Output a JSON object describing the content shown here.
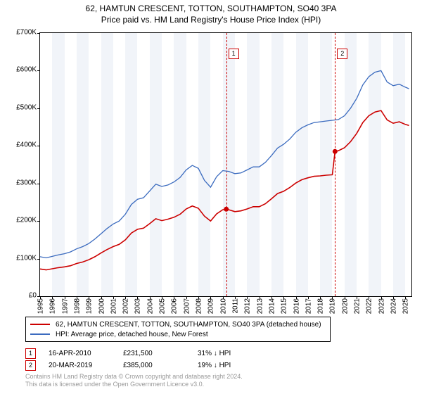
{
  "title_line1": "62, HAMTUN CRESCENT, TOTTON, SOUTHAMPTON, SO40 3PA",
  "title_line2": "Price paid vs. HM Land Registry's House Price Index (HPI)",
  "chart": {
    "type": "line",
    "plot_bg": "#ffffff",
    "alt_band_bg": "#f1f4f9",
    "x_range": [
      1995,
      2025.5
    ],
    "y_range": [
      0,
      700000
    ],
    "y_ticks": [
      0,
      100000,
      200000,
      300000,
      400000,
      500000,
      600000,
      700000
    ],
    "y_tick_labels": [
      "£0",
      "£100K",
      "£200K",
      "£300K",
      "£400K",
      "£500K",
      "£600K",
      "£700K"
    ],
    "x_ticks": [
      1995,
      1996,
      1997,
      1998,
      1999,
      2000,
      2001,
      2002,
      2003,
      2004,
      2005,
      2006,
      2007,
      2008,
      2009,
      2010,
      2011,
      2012,
      2013,
      2014,
      2015,
      2016,
      2017,
      2018,
      2019,
      2020,
      2021,
      2022,
      2023,
      2024,
      2025
    ],
    "axis_font_size": 10,
    "series": [
      {
        "name": "hpi",
        "color": "#3b6bbf",
        "width": 1.3,
        "label": "HPI: Average price, detached house, New Forest",
        "points": [
          [
            1995,
            105000
          ],
          [
            1995.5,
            102000
          ],
          [
            1996,
            106000
          ],
          [
            1996.5,
            110000
          ],
          [
            1997,
            113000
          ],
          [
            1997.5,
            118000
          ],
          [
            1998,
            126000
          ],
          [
            1998.5,
            132000
          ],
          [
            1999,
            140000
          ],
          [
            1999.5,
            152000
          ],
          [
            2000,
            166000
          ],
          [
            2000.5,
            180000
          ],
          [
            2001,
            192000
          ],
          [
            2001.5,
            200000
          ],
          [
            2002,
            218000
          ],
          [
            2002.5,
            244000
          ],
          [
            2003,
            258000
          ],
          [
            2003.5,
            262000
          ],
          [
            2004,
            280000
          ],
          [
            2004.5,
            298000
          ],
          [
            2005,
            292000
          ],
          [
            2005.5,
            296000
          ],
          [
            2006,
            304000
          ],
          [
            2006.5,
            316000
          ],
          [
            2007,
            336000
          ],
          [
            2007.5,
            348000
          ],
          [
            2008,
            340000
          ],
          [
            2008.5,
            308000
          ],
          [
            2009,
            290000
          ],
          [
            2009.5,
            318000
          ],
          [
            2010,
            334000
          ],
          [
            2010.5,
            332000
          ],
          [
            2011,
            326000
          ],
          [
            2011.5,
            328000
          ],
          [
            2012,
            336000
          ],
          [
            2012.5,
            344000
          ],
          [
            2013,
            344000
          ],
          [
            2013.5,
            356000
          ],
          [
            2014,
            374000
          ],
          [
            2014.5,
            394000
          ],
          [
            2015,
            404000
          ],
          [
            2015.5,
            418000
          ],
          [
            2016,
            436000
          ],
          [
            2016.5,
            448000
          ],
          [
            2017,
            456000
          ],
          [
            2017.5,
            462000
          ],
          [
            2018,
            464000
          ],
          [
            2018.5,
            466000
          ],
          [
            2019,
            468000
          ],
          [
            2019.5,
            470000
          ],
          [
            2020,
            480000
          ],
          [
            2020.5,
            500000
          ],
          [
            2021,
            526000
          ],
          [
            2021.5,
            562000
          ],
          [
            2022,
            584000
          ],
          [
            2022.5,
            596000
          ],
          [
            2023,
            600000
          ],
          [
            2023.5,
            570000
          ],
          [
            2024,
            560000
          ],
          [
            2024.5,
            564000
          ],
          [
            2025,
            556000
          ],
          [
            2025.3,
            552000
          ]
        ]
      },
      {
        "name": "price_paid",
        "color": "#cc0000",
        "width": 1.6,
        "label": "62, HAMTUN CRESCENT, TOTTON, SOUTHAMPTON, SO40 3PA (detached house)",
        "points": [
          [
            1995,
            72500
          ],
          [
            1995.5,
            70000
          ],
          [
            1996,
            73000
          ],
          [
            1996.5,
            76000
          ],
          [
            1997,
            78000
          ],
          [
            1997.5,
            81000
          ],
          [
            1998,
            87000
          ],
          [
            1998.5,
            91000
          ],
          [
            1999,
            97000
          ],
          [
            1999.5,
            105000
          ],
          [
            2000,
            115000
          ],
          [
            2000.5,
            124000
          ],
          [
            2001,
            132000
          ],
          [
            2001.5,
            138000
          ],
          [
            2002,
            150000
          ],
          [
            2002.5,
            168000
          ],
          [
            2003,
            178000
          ],
          [
            2003.5,
            181000
          ],
          [
            2004,
            193000
          ],
          [
            2004.5,
            206000
          ],
          [
            2005,
            201000
          ],
          [
            2005.5,
            205000
          ],
          [
            2006,
            210000
          ],
          [
            2006.5,
            218000
          ],
          [
            2007,
            232000
          ],
          [
            2007.5,
            240000
          ],
          [
            2008,
            234000
          ],
          [
            2008.5,
            213000
          ],
          [
            2009,
            200000
          ],
          [
            2009.5,
            219000
          ],
          [
            2010,
            230000
          ],
          [
            2010.29,
            231500
          ],
          [
            2010.5,
            230000
          ],
          [
            2011,
            225000
          ],
          [
            2011.5,
            227000
          ],
          [
            2012,
            232000
          ],
          [
            2012.5,
            238000
          ],
          [
            2013,
            238000
          ],
          [
            2013.5,
            246000
          ],
          [
            2014,
            259000
          ],
          [
            2014.5,
            273000
          ],
          [
            2015,
            279000
          ],
          [
            2015.5,
            289000
          ],
          [
            2016,
            301000
          ],
          [
            2016.5,
            310000
          ],
          [
            2017,
            315000
          ],
          [
            2017.5,
            319000
          ],
          [
            2018,
            320000
          ],
          [
            2018.5,
            322000
          ],
          [
            2019,
            323000
          ],
          [
            2019.22,
            385000
          ],
          [
            2019.5,
            387000
          ],
          [
            2020,
            395000
          ],
          [
            2020.5,
            411000
          ],
          [
            2021,
            433000
          ],
          [
            2021.5,
            462000
          ],
          [
            2022,
            480000
          ],
          [
            2022.5,
            490000
          ],
          [
            2023,
            494000
          ],
          [
            2023.5,
            469000
          ],
          [
            2024,
            460000
          ],
          [
            2024.5,
            464000
          ],
          [
            2025,
            457000
          ],
          [
            2025.3,
            454000
          ]
        ]
      }
    ],
    "sale_markers": [
      {
        "x": 2010.29,
        "y": 231500,
        "color": "#cc0000"
      },
      {
        "x": 2019.22,
        "y": 385000,
        "color": "#cc0000"
      }
    ],
    "event_markers": [
      {
        "n": "1",
        "x": 2010.29,
        "color": "#cc0000"
      },
      {
        "n": "2",
        "x": 2019.22,
        "color": "#cc0000"
      }
    ]
  },
  "legend": [
    {
      "color": "#cc0000",
      "label": "62, HAMTUN CRESCENT, TOTTON, SOUTHAMPTON, SO40 3PA (detached house)"
    },
    {
      "color": "#3b6bbf",
      "label": "HPI: Average price, detached house, New Forest"
    }
  ],
  "events": [
    {
      "n": "1",
      "color": "#cc0000",
      "date": "16-APR-2010",
      "price": "£231,500",
      "delta": "31% ↓ HPI"
    },
    {
      "n": "2",
      "color": "#cc0000",
      "date": "20-MAR-2019",
      "price": "£385,000",
      "delta": "19% ↓ HPI"
    }
  ],
  "footer_line1": "Contains HM Land Registry data © Crown copyright and database right 2024.",
  "footer_line2": "This data is licensed under the Open Government Licence v3.0."
}
